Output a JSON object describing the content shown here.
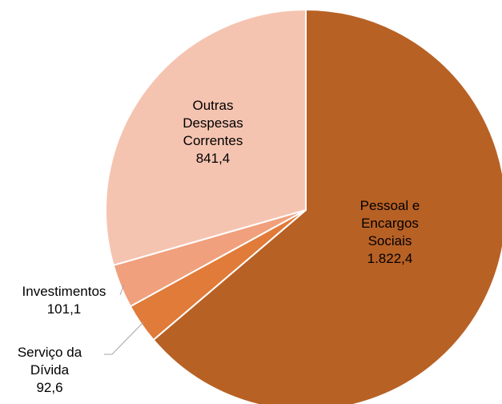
{
  "chart_data": {
    "type": "pie",
    "categories": [
      "Pessoal e Encargos Sociais",
      "Serviço da Dívida",
      "Investimentos",
      "Outras Despesas Correntes"
    ],
    "values": [
      1822.4,
      92.6,
      101.1,
      841.4
    ],
    "value_labels": [
      "1.822,4",
      "92,6",
      "101,1",
      "841,4"
    ],
    "colors": [
      "#b86125",
      "#e07b39",
      "#f0a07c",
      "#f5c4b1"
    ]
  }
}
